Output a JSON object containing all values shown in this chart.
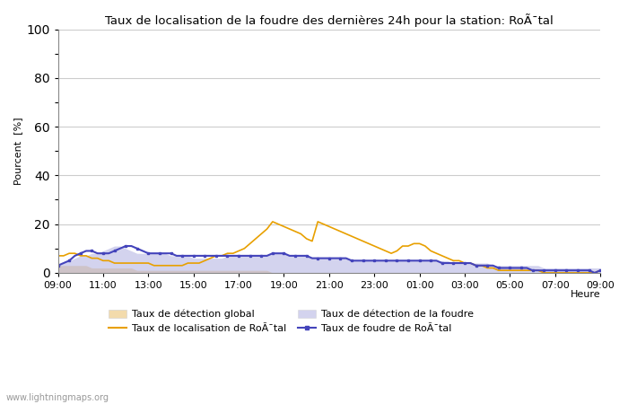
{
  "title_display": "Taux de localisation de la foudre des dernières 24h pour la station: RoÃ¯tal",
  "ylabel": "Pourcent  [%]",
  "xlabel": "Heure",
  "ylim": [
    0,
    100
  ],
  "yticks": [
    0,
    20,
    40,
    60,
    80,
    100
  ],
  "xtick_labels": [
    "09:00",
    "11:00",
    "13:00",
    "15:00",
    "17:00",
    "19:00",
    "21:00",
    "23:00",
    "01:00",
    "03:00",
    "05:00",
    "07:00",
    "09:00"
  ],
  "bg_color": "#ffffff",
  "plot_bg_color": "#ffffff",
  "grid_color": "#cccccc",
  "watermark": "www.lightningmaps.org",
  "color_global": "#f0d090",
  "color_local": "#e8a000",
  "color_foudre_fill": "#b0b0e0",
  "color_foudre_line": "#4444bb",
  "label_global": "Taux de détection global",
  "label_local": "Taux de localisation de RoÃ¯tal",
  "label_foudre_fill": "Taux de détection de la foudre",
  "label_foudre_line": "Taux de foudre de RoÃ¯tal",
  "detection_global": [
    3,
    3,
    3,
    3,
    3,
    3,
    2,
    2,
    2,
    2,
    2,
    2,
    2,
    2,
    1,
    1,
    1,
    1,
    1,
    1,
    1,
    1,
    1,
    1,
    1,
    1,
    1,
    1,
    1,
    1,
    1,
    1,
    1,
    1,
    1,
    1,
    1,
    1,
    0,
    0,
    0,
    0,
    0,
    0,
    0,
    0,
    0,
    0,
    0,
    0,
    0,
    0,
    0,
    0,
    0,
    0,
    0,
    0,
    0,
    0,
    0,
    0,
    0,
    0,
    0,
    0,
    0,
    0,
    0,
    0,
    0,
    0,
    0,
    0,
    0,
    0,
    0,
    0,
    0,
    0,
    0,
    0,
    0,
    0,
    0,
    0,
    0,
    0,
    0,
    0,
    0,
    0,
    0,
    0,
    0,
    0,
    0
  ],
  "localisation_rotal": [
    7,
    7,
    8,
    8,
    7,
    7,
    6,
    6,
    5,
    5,
    4,
    4,
    4,
    4,
    4,
    4,
    4,
    3,
    3,
    3,
    3,
    3,
    3,
    4,
    4,
    4,
    5,
    6,
    7,
    7,
    8,
    8,
    9,
    10,
    12,
    14,
    16,
    18,
    21,
    20,
    19,
    18,
    17,
    16,
    14,
    13,
    21,
    20,
    19,
    18,
    17,
    16,
    15,
    14,
    13,
    12,
    11,
    10,
    9,
    8,
    9,
    11,
    11,
    12,
    12,
    11,
    9,
    8,
    7,
    6,
    5,
    5,
    4,
    4,
    3,
    3,
    2,
    2,
    1,
    1,
    1,
    1,
    1,
    1,
    1,
    1,
    0,
    0,
    0,
    0,
    0,
    0,
    0,
    0,
    0,
    0,
    1
  ],
  "detection_foudre": [
    3,
    4,
    5,
    6,
    7,
    7,
    8,
    8,
    9,
    10,
    11,
    11,
    10,
    9,
    8,
    8,
    8,
    8,
    8,
    8,
    7,
    7,
    7,
    7,
    6,
    6,
    6,
    6,
    6,
    6,
    7,
    7,
    7,
    7,
    7,
    7,
    7,
    7,
    8,
    8,
    8,
    7,
    7,
    7,
    7,
    6,
    6,
    6,
    6,
    6,
    6,
    6,
    5,
    5,
    5,
    5,
    5,
    5,
    5,
    5,
    5,
    5,
    5,
    5,
    5,
    5,
    5,
    5,
    5,
    5,
    4,
    4,
    4,
    4,
    4,
    4,
    4,
    3,
    3,
    3,
    3,
    3,
    3,
    3,
    3,
    3,
    2,
    2,
    2,
    2,
    2,
    2,
    2,
    2,
    2,
    2,
    2
  ],
  "foudre_rotal": [
    3,
    4,
    5,
    7,
    8,
    9,
    9,
    8,
    8,
    8,
    9,
    10,
    11,
    11,
    10,
    9,
    8,
    8,
    8,
    8,
    8,
    7,
    7,
    7,
    7,
    7,
    7,
    7,
    7,
    7,
    7,
    7,
    7,
    7,
    7,
    7,
    7,
    7,
    8,
    8,
    8,
    7,
    7,
    7,
    7,
    6,
    6,
    6,
    6,
    6,
    6,
    6,
    5,
    5,
    5,
    5,
    5,
    5,
    5,
    5,
    5,
    5,
    5,
    5,
    5,
    5,
    5,
    5,
    4,
    4,
    4,
    4,
    4,
    4,
    3,
    3,
    3,
    3,
    2,
    2,
    2,
    2,
    2,
    2,
    1,
    1,
    1,
    1,
    1,
    1,
    1,
    1,
    1,
    1,
    1,
    0,
    1
  ]
}
